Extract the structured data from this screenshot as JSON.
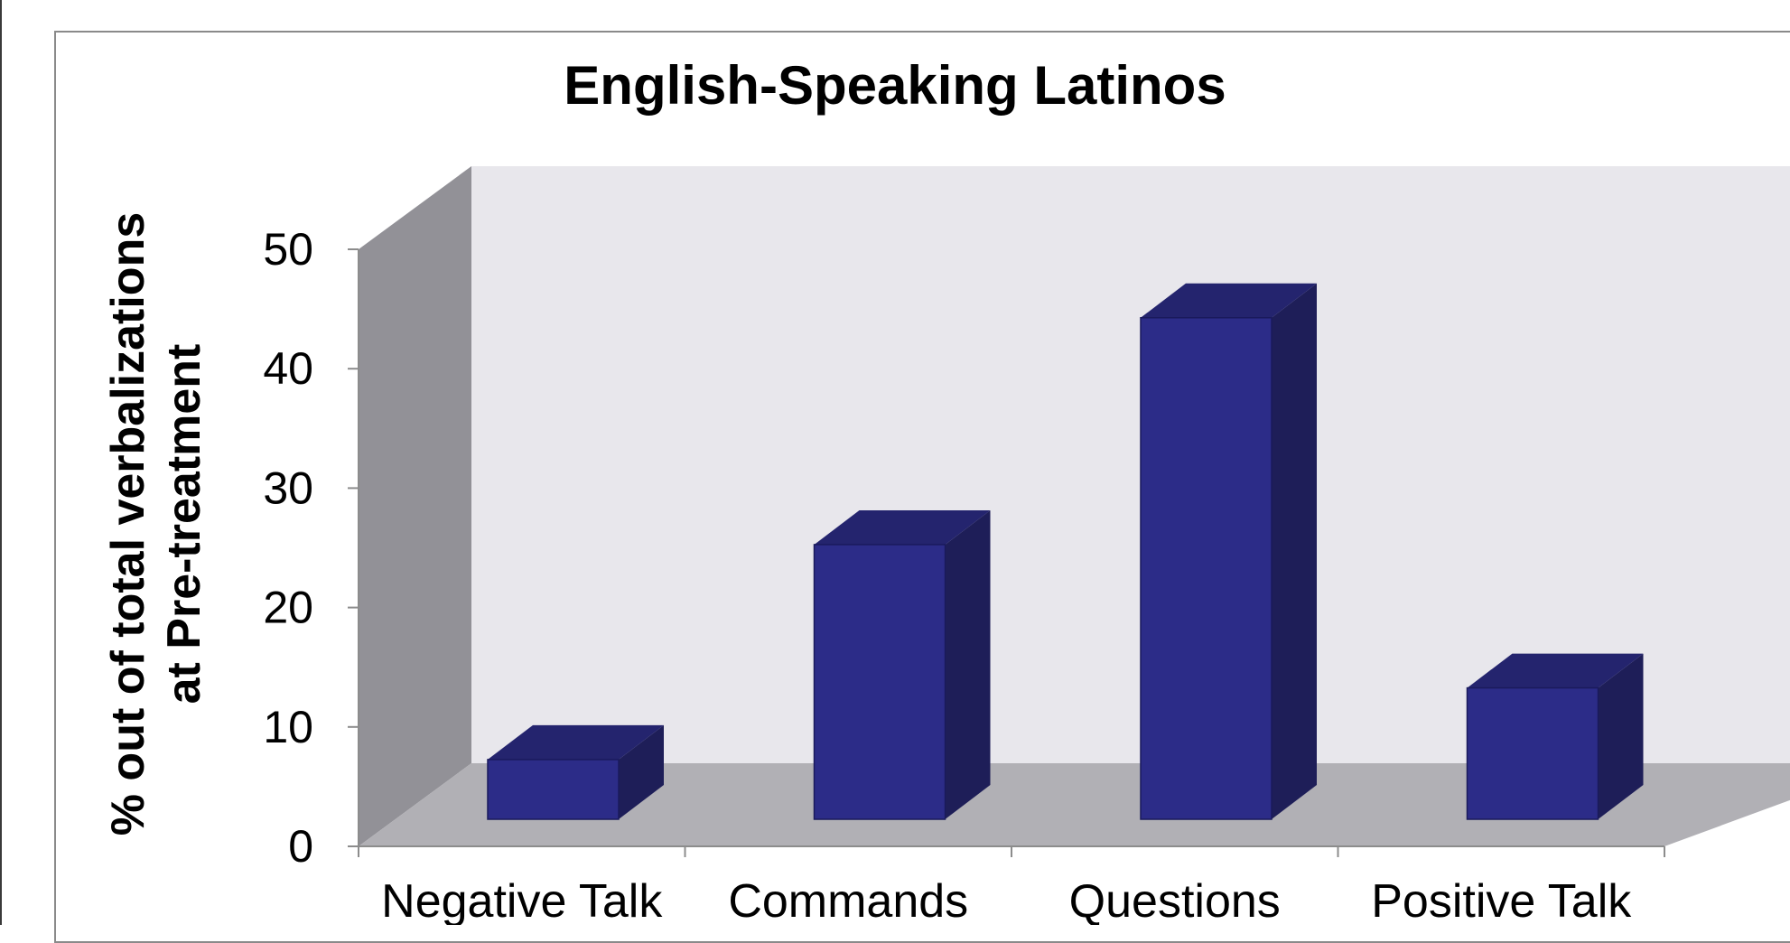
{
  "chart_data": {
    "type": "bar",
    "title": "English-Speaking Latinos",
    "ylabel": "% out of total verbalizations at Pre-treatment",
    "ylabel_lines": [
      "% out of total verbalizations",
      "at Pre-treatment"
    ],
    "xlabel": "",
    "categories": [
      "Negative Talk",
      "Commands",
      "Questions",
      "Positive Talk"
    ],
    "values": [
      5,
      23,
      42,
      11
    ],
    "ylim": [
      0,
      50
    ],
    "yticks": [
      "0",
      "10",
      "20",
      "30",
      "40",
      "50"
    ],
    "style": "3d",
    "grid": false,
    "colors": {
      "bar_front": "#2c2c88",
      "bar_top": "#24246e",
      "bar_side": "#1e1e58",
      "back_wall": "#e8e7ec",
      "side_wall": "#929197",
      "floor": "#b1b0b5"
    }
  }
}
